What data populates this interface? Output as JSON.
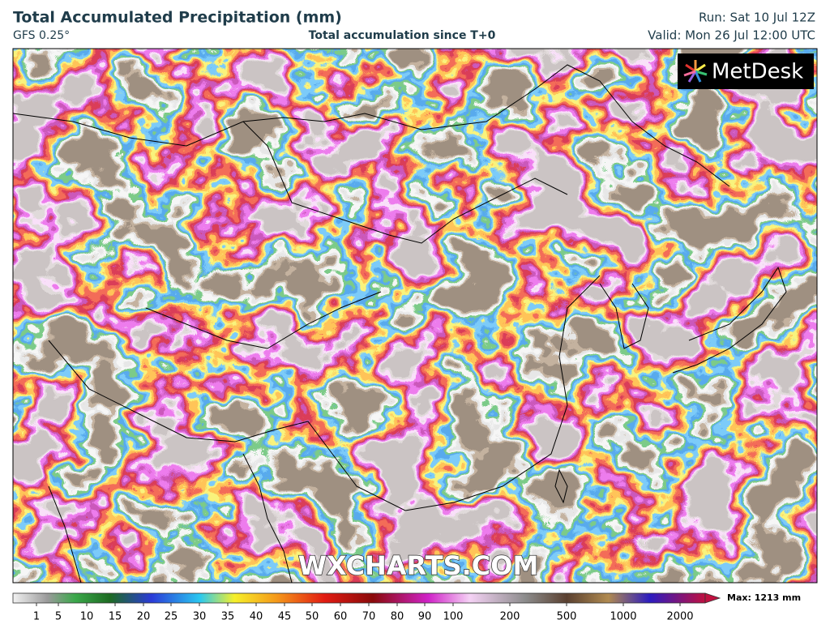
{
  "header": {
    "title": "Total Accumulated Precipitation (mm)",
    "model": "GFS 0.25°",
    "subtitle": "Total accumulation since T+0",
    "run": "Run: Sat 10 Jul 12Z",
    "valid": "Valid: Mon 26 Jul 12:00 UTC"
  },
  "map": {
    "watermark": "WXCHARTS.COM",
    "logo": "MetDesk"
  },
  "legend": {
    "ticks": [
      1,
      5,
      10,
      15,
      20,
      25,
      30,
      35,
      40,
      45,
      50,
      60,
      70,
      80,
      90,
      100,
      200,
      500,
      1000,
      2000
    ],
    "max": "Max: 1213 mm"
  }
}
